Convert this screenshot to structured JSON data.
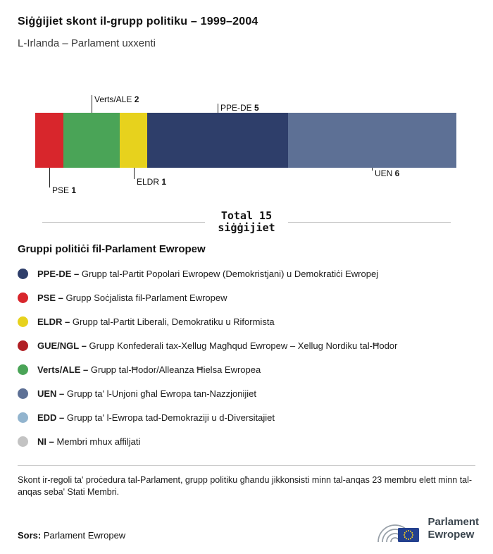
{
  "header": {
    "title": "Siġġijiet skont il-grupp politiku – 1999–2004",
    "subtitle": "L-Irlanda – Parlament uxxenti"
  },
  "chart_data": {
    "type": "bar",
    "variant": "horizontal-stacked-seat-bar",
    "total_seats": 15,
    "total_label_line1": "Total 15",
    "total_label_line2": "siġġijiet",
    "categories": [
      "PSE",
      "Verts/ALE",
      "ELDR",
      "PPE-DE",
      "UEN"
    ],
    "values": [
      1,
      2,
      1,
      5,
      6
    ],
    "segments": [
      {
        "name": "PSE",
        "seats": 1,
        "color": "#d8262c",
        "label_side": "below",
        "label_level": 3
      },
      {
        "name": "Verts/ALE",
        "seats": 2,
        "color": "#4aa457",
        "label_side": "above",
        "label_level": 2
      },
      {
        "name": "ELDR",
        "seats": 1,
        "color": "#e7d21d",
        "label_side": "below",
        "label_level": 2
      },
      {
        "name": "PPE-DE",
        "seats": 5,
        "color": "#2e3e6a",
        "label_side": "above",
        "label_level": 1
      },
      {
        "name": "UEN",
        "seats": 6,
        "color": "#5d7095",
        "label_side": "below",
        "label_level": 1
      }
    ]
  },
  "legend": {
    "title": "Gruppi politiċi fil-Parlament Ewropew",
    "items": [
      {
        "abbr": "PPE-DE –",
        "desc": "Grupp tal-Partit Popolari Ewropew (Demokristjani) u Demokratiċi Ewropej",
        "color": "#2e3e6a"
      },
      {
        "abbr": "PSE –",
        "desc": "Grupp Soċjalista fil-Parlament Ewropew",
        "color": "#d8262c"
      },
      {
        "abbr": "ELDR –",
        "desc": "Grupp tal-Partit Liberali, Demokratiku u Riformista",
        "color": "#e7d21d"
      },
      {
        "abbr": "GUE/NGL –",
        "desc": "Grupp Konfederali tax-Xellug Magħqud Ewropew – Xellug Nordiku tal-Ħodor",
        "color": "#b01f24"
      },
      {
        "abbr": "Verts/ALE –",
        "desc": "Grupp tal-Ħodor/Alleanza Ħielsa Ewropea",
        "color": "#4aa457"
      },
      {
        "abbr": "UEN –",
        "desc": "Grupp ta' l-Unjoni għal Ewropa tan-Nazzjonijiet",
        "color": "#5d7095"
      },
      {
        "abbr": "EDD –",
        "desc": "Grupp ta' l-Ewropa tad-Demokraziji u d-Diversitajiet",
        "color": "#92b4ce"
      },
      {
        "abbr": "NI –",
        "desc": "Membri mhux affiljati",
        "color": "#c3c3c3"
      }
    ]
  },
  "footnote": "Skont ir-regoli ta' proċedura tal-Parlament, grupp politiku għandu jikkonsisti minn tal-anqas 23 membru elett minn tal-anqas seba' Stati Membri.",
  "source": {
    "label": "Sors:",
    "value": "Parlament Ewropew"
  },
  "logo": {
    "line1": "Parlament",
    "line2": "Ewropew",
    "flag_blue": "#24418f",
    "star_yellow": "#ffd617",
    "arc_gray": "#98a0a8"
  }
}
